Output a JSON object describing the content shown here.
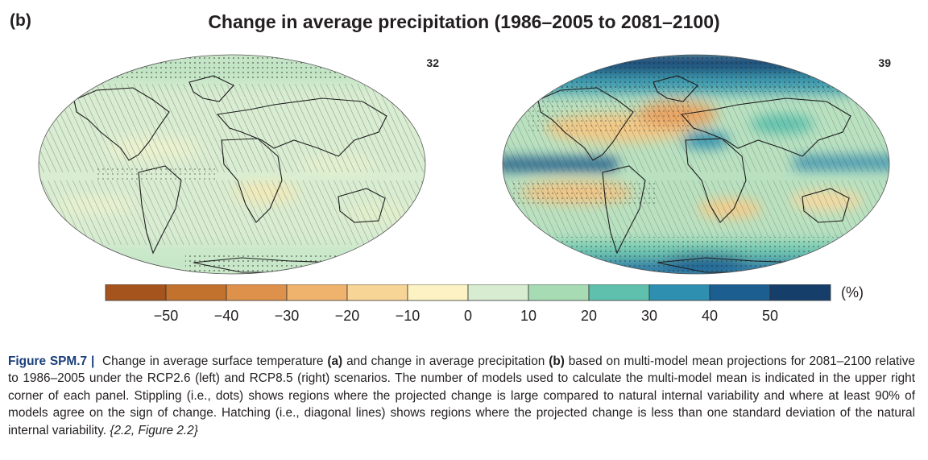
{
  "panel_label": "(b)",
  "figure_title": "Change in average precipitation (1986–2005 to 2081–2100)",
  "maps": [
    {
      "scenario": "RCP2.6",
      "model_count": "32"
    },
    {
      "scenario": "RCP8.5",
      "model_count": "39"
    }
  ],
  "colorbar": {
    "unit": "(%)",
    "tick_labels": [
      "−50",
      "−40",
      "−30",
      "−20",
      "−10",
      "0",
      "10",
      "20",
      "30",
      "40",
      "50"
    ],
    "colors": [
      "#a5541e",
      "#c3722d",
      "#de914a",
      "#f0b36e",
      "#f7d596",
      "#fdf2c3",
      "#d7ecd0",
      "#a6dbb3",
      "#5fc1ad",
      "#2f8fb0",
      "#1c5e90",
      "#163e6b"
    ]
  },
  "caption": {
    "label": "Figure SPM.7 |",
    "part1": "Change in average surface temperature",
    "a": "(a)",
    "part2": "and change in average precipitation",
    "b": "(b)",
    "part3": "based on multi-model mean projections for 2081–2100 relative to 1986–2005 under the RCP2.6 (left) and RCP8.5 (right) scenarios. The number of models used to calculate the multi-model mean is indicated in the upper right corner of each panel. Stippling (i.e., dots) shows regions where the projected change is large compared to natural internal variability and where at least 90% of models agree on the sign of change. Hatching (i.e., diagonal lines) shows regions where the projected change is less than one standard deviation of the natural internal variability.",
    "ref": "{2.2, Figure 2.2}"
  }
}
